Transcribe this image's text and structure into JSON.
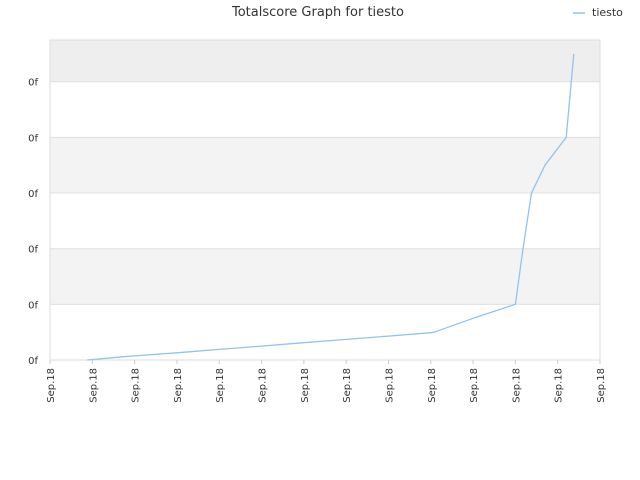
{
  "chart_data": {
    "type": "line",
    "title": "Totalscore Graph for tiesto",
    "legend": {
      "position": "top-right",
      "entries": [
        "tiesto"
      ]
    },
    "x_tick_labels": [
      "Sep.18",
      "Sep.18",
      "Sep.18",
      "Sep.18",
      "Sep.18",
      "Sep.18",
      "Sep.18",
      "Sep.18",
      "Sep.18",
      "Sep.18",
      "Sep.18",
      "Sep.18",
      "Sep.18",
      "Sep.18"
    ],
    "y_tick_labels": [
      "0f",
      "0f",
      "0f",
      "0f",
      "0f",
      "0f"
    ],
    "xlim": [
      0,
      13
    ],
    "ylim": [
      0,
      5.75
    ],
    "grid": true,
    "series": [
      {
        "name": "tiesto",
        "color": "#90c3ef",
        "x": [
          0.88,
          1.9,
          3.0,
          4.0,
          5.0,
          6.0,
          7.0,
          8.0,
          9.0,
          9.08,
          10.0,
          11.0,
          11.18,
          11.38,
          11.7,
          12.2,
          12.38
        ],
        "y": [
          0,
          0.07,
          0.13,
          0.19,
          0.25,
          0.31,
          0.37,
          0.43,
          0.49,
          0.5,
          0.75,
          1.0,
          2.0,
          3.0,
          3.5,
          4.0,
          5.5
        ]
      }
    ]
  }
}
